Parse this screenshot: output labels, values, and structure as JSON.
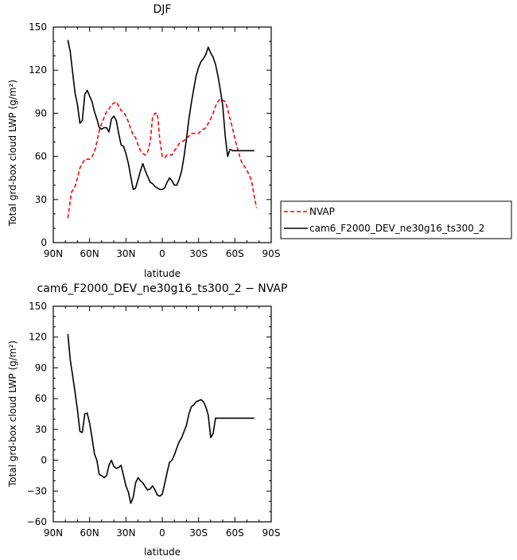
{
  "chart_data": [
    {
      "type": "line",
      "title": "DJF",
      "xlabel": "latitude",
      "ylabel": "Total grd-box cloud LWP (g/m²)",
      "xlim": [
        90,
        -90
      ],
      "ylim": [
        0,
        150
      ],
      "yticks": [
        0,
        30,
        60,
        90,
        120,
        150
      ],
      "xticks": [
        {
          "value": 90,
          "label": "90N"
        },
        {
          "value": 60,
          "label": "60N"
        },
        {
          "value": 30,
          "label": "30N"
        },
        {
          "value": 0,
          "label": "0"
        },
        {
          "value": -30,
          "label": "30S"
        },
        {
          "value": -60,
          "label": "60S"
        },
        {
          "value": -90,
          "label": "90S"
        }
      ],
      "legend_position": "right",
      "series": [
        {
          "name": "NVAP",
          "color": "#ff0000",
          "dash": "dashed",
          "x": [
            78,
            75,
            72,
            70,
            68,
            66,
            64,
            62,
            60,
            58,
            56,
            54,
            52,
            50,
            48,
            46,
            44,
            42,
            40,
            38,
            36,
            34,
            32,
            30,
            28,
            26,
            24,
            22,
            20,
            18,
            16,
            14,
            12,
            10,
            8,
            6,
            4,
            2,
            0,
            -2,
            -4,
            -6,
            -8,
            -10,
            -12,
            -14,
            -16,
            -18,
            -20,
            -22,
            -24,
            -26,
            -28,
            -30,
            -32,
            -34,
            -36,
            -38,
            -40,
            -42,
            -44,
            -46,
            -48,
            -50,
            -52,
            -54,
            -56,
            -58,
            -60,
            -62,
            -64,
            -66,
            -68,
            -70,
            -72,
            -74,
            -76,
            -78
          ],
          "y": [
            17,
            35,
            39,
            45,
            52,
            55,
            58,
            58,
            58,
            60,
            63,
            70,
            78,
            83,
            87,
            91,
            93,
            96,
            97,
            98,
            95,
            92,
            91,
            88,
            84,
            79,
            75,
            73,
            68,
            64,
            62,
            61,
            63,
            70,
            87,
            90,
            90,
            71,
            60,
            59,
            61,
            61,
            61,
            64,
            66,
            69,
            70,
            71,
            73,
            74,
            76,
            76,
            76,
            76,
            78,
            79,
            80,
            83,
            86,
            90,
            95,
            98,
            100,
            99,
            98,
            93,
            86,
            80,
            72,
            66,
            60,
            55,
            53,
            50,
            47,
            42,
            32,
            24
          ]
        },
        {
          "name": "cam6_F2000_DEV_ne30g16_ts300_2",
          "color": "#000000",
          "dash": "solid",
          "x": [
            78,
            76,
            74,
            72,
            70,
            68,
            66,
            64,
            62,
            60,
            58,
            56,
            54,
            52,
            50,
            48,
            46,
            44,
            42,
            40,
            38,
            36,
            34,
            32,
            30,
            28,
            26,
            24,
            22,
            20,
            18,
            16,
            14,
            12,
            10,
            8,
            6,
            4,
            2,
            0,
            -2,
            -4,
            -6,
            -8,
            -10,
            -12,
            -14,
            -16,
            -18,
            -20,
            -22,
            -24,
            -26,
            -28,
            -30,
            -32,
            -34,
            -36,
            -38,
            -40,
            -42,
            -44,
            -46,
            -48,
            -50,
            -52,
            -54,
            -56,
            -58,
            -60,
            -62,
            -64,
            -66,
            -68,
            -70,
            -72,
            -74,
            -76
          ],
          "y": [
            141,
            133,
            118,
            104,
            96,
            83,
            85,
            103,
            106,
            102,
            98,
            91,
            86,
            80,
            79,
            80,
            80,
            77,
            86,
            88,
            85,
            76,
            68,
            67,
            62,
            55,
            46,
            37,
            38,
            44,
            50,
            55,
            50,
            46,
            42,
            41,
            39,
            38,
            37,
            37,
            38,
            42,
            45,
            43,
            40,
            40,
            44,
            50,
            60,
            72,
            86,
            97,
            107,
            116,
            122,
            126,
            128,
            131,
            136,
            132,
            129,
            124,
            116,
            106,
            95,
            74,
            60,
            65,
            64,
            64,
            64,
            64,
            64,
            64,
            64,
            64,
            64,
            64
          ]
        }
      ]
    },
    {
      "type": "line",
      "title": "cam6_F2000_DEV_ne30g16_ts300_2 − NVAP",
      "xlabel": "latitude",
      "ylabel": "Total grd-box cloud LWP (g/m²)",
      "xlim": [
        90,
        -90
      ],
      "ylim": [
        -60,
        150
      ],
      "yticks": [
        -60,
        -30,
        0,
        30,
        60,
        90,
        120,
        150
      ],
      "xticks": [
        {
          "value": 90,
          "label": "90N"
        },
        {
          "value": 60,
          "label": "60N"
        },
        {
          "value": 30,
          "label": "30N"
        },
        {
          "value": 0,
          "label": "0"
        },
        {
          "value": -30,
          "label": "30S"
        },
        {
          "value": -60,
          "label": "60S"
        },
        {
          "value": -90,
          "label": "90S"
        }
      ],
      "series": [
        {
          "color": "#000000",
          "dash": "solid",
          "x": [
            78,
            76,
            74,
            72,
            70,
            68,
            66,
            64,
            62,
            60,
            58,
            56,
            54,
            52,
            50,
            48,
            46,
            44,
            42,
            40,
            38,
            36,
            34,
            32,
            30,
            28,
            26,
            24,
            22,
            20,
            18,
            16,
            14,
            12,
            10,
            8,
            6,
            4,
            2,
            0,
            -2,
            -4,
            -6,
            -8,
            -10,
            -12,
            -14,
            -16,
            -18,
            -20,
            -22,
            -24,
            -26,
            -28,
            -30,
            -32,
            -34,
            -36,
            -38,
            -40,
            -42,
            -44,
            -46,
            -48,
            -50,
            -52,
            -54,
            -56,
            -58,
            -60,
            -62,
            -64,
            -66,
            -68,
            -70,
            -72,
            -74,
            -76
          ],
          "y": [
            123,
            98,
            82,
            66,
            49,
            28,
            27,
            45,
            46,
            36,
            22,
            6,
            0,
            -14,
            -15,
            -17,
            -15,
            -5,
            0,
            -6,
            -8,
            -7,
            -5,
            -15,
            -25,
            -31,
            -42,
            -36,
            -22,
            -17,
            -20,
            -22,
            -26,
            -29,
            -28,
            -25,
            -29,
            -34,
            -35,
            -33,
            -23,
            -12,
            -2,
            0,
            5,
            12,
            18,
            22,
            28,
            34,
            45,
            52,
            54,
            57,
            58,
            59,
            57,
            52,
            44,
            22,
            26,
            41,
            41,
            41,
            41,
            41,
            41,
            41,
            41,
            41,
            41,
            41,
            41,
            41,
            41,
            41,
            41,
            41
          ]
        }
      ]
    }
  ]
}
